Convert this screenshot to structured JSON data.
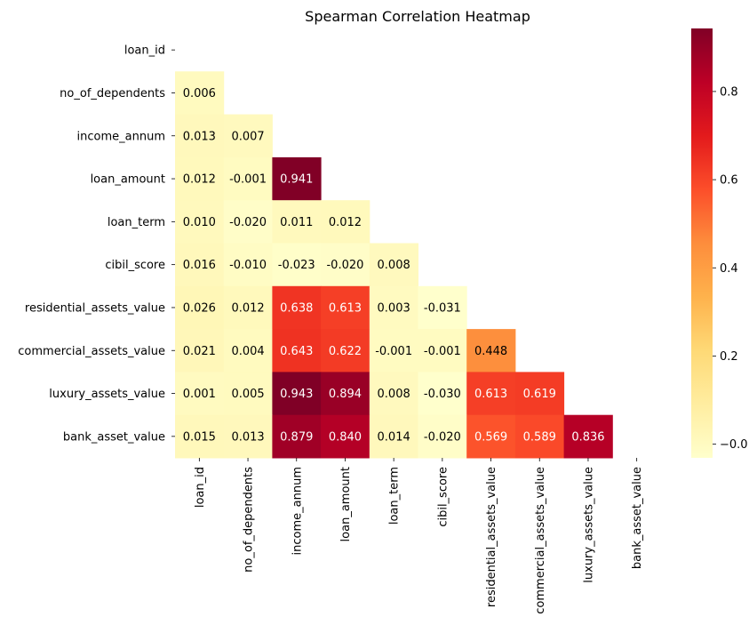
{
  "chart_data": {
    "type": "heatmap",
    "title": "Spearman Correlation Heatmap",
    "xlabel": "",
    "ylabel": "",
    "labels": [
      "loan_id",
      "no_of_dependents",
      "income_annum",
      "loan_amount",
      "loan_term",
      "cibil_score",
      "residential_assets_value",
      "commercial_assets_value",
      "luxury_assets_value",
      "bank_asset_value"
    ],
    "mask": "upper-triangle-including-diagonal",
    "rows": [
      {
        "row": "no_of_dependents",
        "values": [
          0.006
        ],
        "labels": [
          "0.006"
        ]
      },
      {
        "row": "income_annum",
        "values": [
          0.013,
          0.007
        ],
        "labels": [
          "0.013",
          "0.007"
        ]
      },
      {
        "row": "loan_amount",
        "values": [
          0.012,
          -0.001,
          0.941
        ],
        "labels": [
          "0.012",
          "-0.001",
          "0.941"
        ]
      },
      {
        "row": "loan_term",
        "values": [
          0.01,
          -0.02,
          0.011,
          0.012
        ],
        "labels": [
          "0.010",
          "-0.020",
          "0.011",
          "0.012"
        ]
      },
      {
        "row": "cibil_score",
        "values": [
          0.016,
          -0.01,
          -0.023,
          -0.02,
          0.008
        ],
        "labels": [
          "0.016",
          "-0.010",
          "-0.023",
          "-0.020",
          "0.008"
        ]
      },
      {
        "row": "residential_assets_value",
        "values": [
          0.026,
          0.012,
          0.638,
          0.613,
          0.003,
          -0.031
        ],
        "labels": [
          "0.026",
          "0.012",
          "0.638",
          "0.613",
          "0.003",
          "-0.031"
        ]
      },
      {
        "row": "commercial_assets_value",
        "values": [
          0.021,
          0.004,
          0.643,
          0.622,
          -0.001,
          -0.001,
          0.448
        ],
        "labels": [
          "0.021",
          "0.004",
          "0.643",
          "0.622",
          "-0.001",
          "-0.001",
          "0.448"
        ]
      },
      {
        "row": "luxury_assets_value",
        "values": [
          0.001,
          0.005,
          0.943,
          0.894,
          0.008,
          -0.03,
          0.613,
          0.619
        ],
        "labels": [
          "0.001",
          "0.005",
          "0.943",
          "0.894",
          "0.008",
          "-0.030",
          "0.613",
          "0.619"
        ]
      },
      {
        "row": "bank_asset_value",
        "values": [
          0.015,
          0.013,
          0.879,
          0.84,
          0.014,
          -0.02,
          0.569,
          0.589,
          0.836
        ],
        "labels": [
          "0.015",
          "0.013",
          "0.879",
          "0.840",
          "0.014",
          "-0.020",
          "0.569",
          "0.589",
          "0.836"
        ]
      }
    ],
    "colorbar": {
      "vmin": -0.031,
      "vmax": 0.943,
      "ticks": [
        0.0,
        0.2,
        0.4,
        0.6,
        0.8
      ],
      "tick_labels": [
        "−0.0",
        "0.2",
        "0.4",
        "0.6",
        "0.8"
      ],
      "colormap": "YlOrRd",
      "stops": [
        "#ffffcc",
        "#ffeda0",
        "#fed976",
        "#feb24c",
        "#fd8d3c",
        "#fc4e2a",
        "#e31a1c",
        "#bd0026",
        "#800026"
      ]
    },
    "grid": false,
    "legend": "colorbar-right"
  }
}
